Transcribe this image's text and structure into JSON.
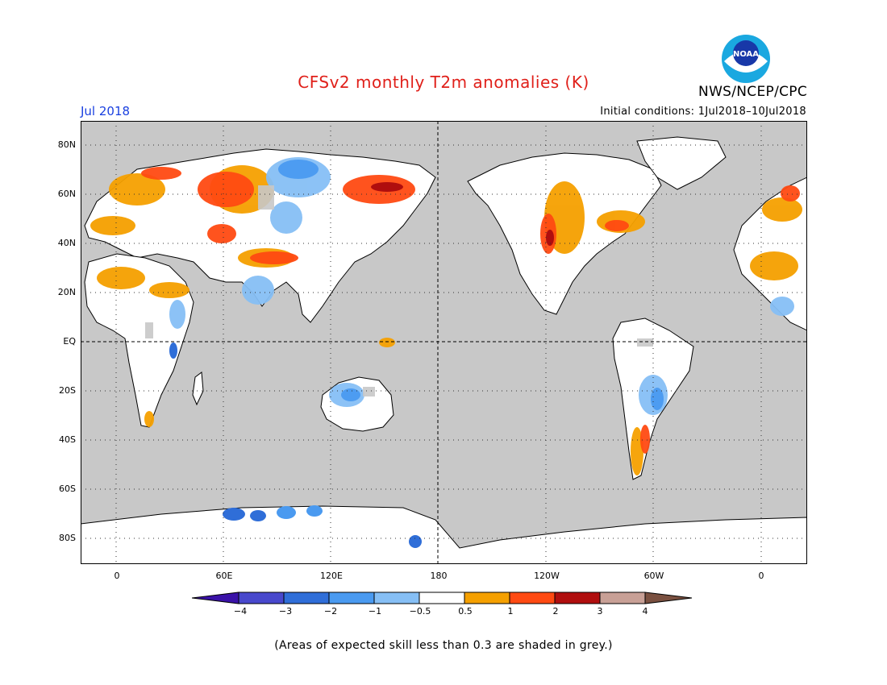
{
  "header": {
    "title": "CFSv2 monthly T2m anomalies (K)",
    "month": "Jul 2018",
    "initial_conditions": "Initial conditions: 1Jul2018–10Jul2018",
    "organization": "NWS/NCEP/CPC",
    "logo_text": "NOAA"
  },
  "axes": {
    "lat_labels": [
      "80N",
      "60N",
      "40N",
      "20N",
      "EQ",
      "20S",
      "40S",
      "60S",
      "80S"
    ],
    "lon_labels": [
      "0",
      "60E",
      "120E",
      "180",
      "120W",
      "60W",
      "0"
    ]
  },
  "colorbar": {
    "labels": [
      "−4",
      "−3",
      "−2",
      "−1",
      "−0.5",
      "0.5",
      "1",
      "2",
      "3",
      "4"
    ],
    "colors": [
      "#3a12a8",
      "#4848cc",
      "#2f6ed8",
      "#4a9af0",
      "#86bff5",
      "#ffffff",
      "#f5a000",
      "#ff4a12",
      "#b00e0e",
      "#c8a096",
      "#7a5040"
    ]
  },
  "map": {
    "ocean_color": "#c8c8c8",
    "land_color": "#ffffff"
  },
  "footnote": "(Areas of expected skill less than 0.3 are shaded in grey.)"
}
